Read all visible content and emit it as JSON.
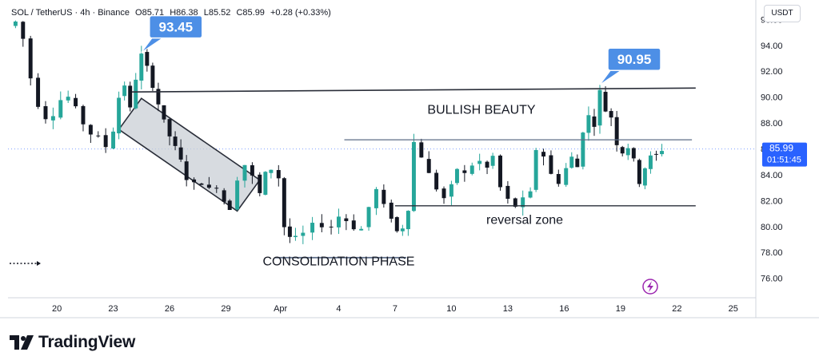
{
  "header": {
    "symbol": "SOL / TetherUS · 4h · Binance",
    "open": "O85.71",
    "high": "H86.38",
    "low": "L85.52",
    "close": "C85.99",
    "change": "+0.28 (+0.33%)"
  },
  "currency_button": "USDT",
  "last_price": {
    "price": "85.99",
    "countdown": "01:51:45"
  },
  "brand": "TradingView",
  "colors": {
    "up": "#26a69a",
    "down": "#131722",
    "line": "#2a2e39",
    "level": "#5b6b86",
    "callout": "#4d8fe6",
    "price_tag": "#2962ff",
    "zone_fill": "#c9cfd6"
  },
  "chart_data": {
    "type": "candlestick",
    "symbol": "SOL / TetherUS",
    "interval": "4h",
    "ylim": [
      74.5,
      97.5
    ],
    "y_ticks": [
      76,
      78,
      80,
      82,
      84,
      86,
      88,
      90,
      92,
      94,
      96
    ],
    "x_ticks": [
      {
        "label": "20",
        "x": 17.0
      },
      {
        "label": "23",
        "x": 20.0
      },
      {
        "label": "26",
        "x": 23.0
      },
      {
        "label": "29",
        "x": 26.0
      },
      {
        "label": "Apr",
        "x": 28.9
      },
      {
        "label": "4",
        "x": 32.0
      },
      {
        "label": "7",
        "x": 35.0
      },
      {
        "label": "10",
        "x": 38.0
      },
      {
        "label": "13",
        "x": 41.0
      },
      {
        "label": "16",
        "x": 44.0
      },
      {
        "label": "19",
        "x": 47.0
      },
      {
        "label": "22",
        "x": 50.0
      },
      {
        "label": "25",
        "x": 53.0
      }
    ],
    "x_range": [
      14.4,
      54.2
    ],
    "price_path": [
      [
        14.4,
        95.5
      ],
      [
        14.8,
        95.8
      ],
      [
        15.2,
        94.5
      ],
      [
        15.6,
        91.5
      ],
      [
        16.0,
        89.5
      ],
      [
        16.4,
        88.5
      ],
      [
        16.8,
        88.8
      ],
      [
        17.2,
        89.8
      ],
      [
        17.6,
        90.0
      ],
      [
        18.0,
        89.0
      ],
      [
        18.4,
        88.0
      ],
      [
        18.8,
        87.2
      ],
      [
        19.2,
        86.8
      ],
      [
        19.6,
        86.2
      ],
      [
        20.0,
        87.5
      ],
      [
        20.3,
        90.0
      ],
      [
        20.6,
        91.0
      ],
      [
        20.9,
        89.0
      ],
      [
        21.2,
        91.5
      ],
      [
        21.5,
        93.2
      ],
      [
        21.8,
        92.2
      ],
      [
        22.1,
        91.0
      ],
      [
        22.4,
        89.5
      ],
      [
        22.7,
        88.0
      ],
      [
        23.0,
        87.0
      ],
      [
        23.3,
        86.0
      ],
      [
        23.6,
        85.0
      ],
      [
        23.9,
        83.8
      ],
      [
        24.3,
        83.2
      ],
      [
        24.7,
        83.5
      ],
      [
        25.1,
        82.8
      ],
      [
        25.5,
        83.2
      ],
      [
        25.9,
        82.0
      ],
      [
        26.2,
        81.5
      ],
      [
        26.6,
        83.8
      ],
      [
        27.0,
        84.8
      ],
      [
        27.4,
        83.8
      ],
      [
        27.8,
        82.5
      ],
      [
        28.1,
        84.0
      ],
      [
        28.4,
        84.5
      ],
      [
        28.8,
        83.8
      ],
      [
        29.1,
        80.0
      ],
      [
        29.4,
        79.2
      ],
      [
        29.7,
        79.0
      ],
      [
        30.1,
        79.4
      ],
      [
        30.6,
        80.0
      ],
      [
        31.1,
        80.2
      ],
      [
        31.6,
        80.0
      ],
      [
        32.0,
        80.8
      ],
      [
        32.4,
        80.5
      ],
      [
        32.8,
        80.0
      ],
      [
        33.2,
        79.8
      ],
      [
        33.6,
        81.5
      ],
      [
        34.0,
        82.8
      ],
      [
        34.4,
        81.5
      ],
      [
        34.8,
        80.8
      ],
      [
        35.1,
        79.6
      ],
      [
        35.4,
        80.0
      ],
      [
        35.7,
        81.5
      ],
      [
        36.0,
        86.5
      ],
      [
        36.4,
        85.5
      ],
      [
        36.8,
        84.0
      ],
      [
        37.2,
        83.0
      ],
      [
        37.6,
        82.2
      ],
      [
        38.0,
        83.0
      ],
      [
        38.3,
        84.5
      ],
      [
        38.7,
        84.0
      ],
      [
        39.1,
        84.8
      ],
      [
        39.5,
        85.0
      ],
      [
        39.9,
        84.5
      ],
      [
        40.2,
        85.4
      ],
      [
        40.6,
        83.0
      ],
      [
        41.0,
        82.0
      ],
      [
        41.4,
        81.6
      ],
      [
        41.8,
        82.0
      ],
      [
        42.2,
        82.5
      ],
      [
        42.5,
        86.0
      ],
      [
        42.9,
        85.5
      ],
      [
        43.3,
        84.0
      ],
      [
        43.7,
        83.5
      ],
      [
        44.1,
        84.5
      ],
      [
        44.4,
        85.3
      ],
      [
        44.7,
        84.6
      ],
      [
        45.0,
        87.5
      ],
      [
        45.3,
        88.5
      ],
      [
        45.6,
        88.0
      ],
      [
        45.9,
        90.4
      ],
      [
        46.2,
        89.0
      ],
      [
        46.5,
        88.5
      ],
      [
        46.8,
        86.5
      ],
      [
        47.1,
        85.8
      ],
      [
        47.4,
        86.2
      ],
      [
        47.7,
        85.0
      ],
      [
        48.0,
        83.5
      ],
      [
        48.3,
        84.6
      ],
      [
        48.6,
        85.3
      ],
      [
        48.9,
        85.5
      ],
      [
        49.2,
        85.99
      ]
    ],
    "annotations": {
      "callouts": [
        {
          "label": "93.45",
          "x": 21.5,
          "y": 93.45
        },
        {
          "label": "90.95",
          "x": 45.9,
          "y": 90.95
        }
      ],
      "texts": [
        {
          "label": "BULLISH BEAUTY",
          "x": 39.6,
          "y": 88.7
        },
        {
          "label": "reversal zone",
          "x": 41.9,
          "y": 80.2
        },
        {
          "label": "CONSOLIDATION PHASE",
          "x": 32.0,
          "y": 77.0
        }
      ],
      "lines": [
        {
          "x1": 21.0,
          "y1": 90.4,
          "x2": 51.0,
          "y2": 90.7
        },
        {
          "x1": 32.3,
          "y1": 86.7,
          "x2": 50.8,
          "y2": 86.7
        },
        {
          "x1": 35.0,
          "y1": 81.6,
          "x2": 51.0,
          "y2": 81.6
        },
        {
          "x1": 28.6,
          "y1": 77.6,
          "x2": 35.6,
          "y2": 77.6
        }
      ],
      "zone": [
        [
          20.3,
          87.5
        ],
        [
          21.5,
          89.9
        ],
        [
          27.8,
          83.6
        ],
        [
          26.6,
          81.2
        ]
      ]
    }
  }
}
